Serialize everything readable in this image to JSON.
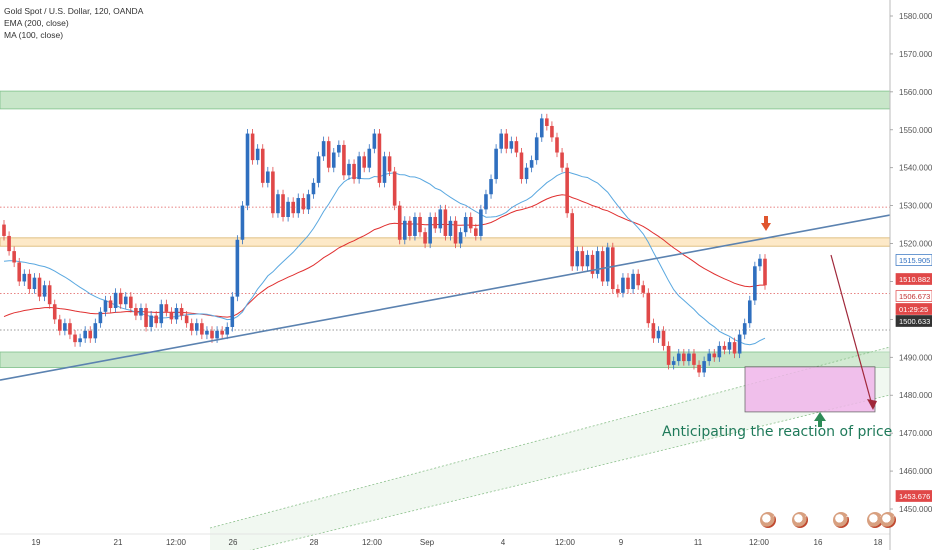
{
  "header": {
    "title": "Gold Spot / U.S. Dollar, 120, OANDA",
    "ema": "EMA (200, close)",
    "ma": "MA (100, close)"
  },
  "annotation": "Anticipating the reaction of price actio",
  "events": [
    {
      "label": "7"
    },
    {
      "label": "7"
    },
    {
      "label": "1"
    },
    {
      "label": "1"
    },
    {
      "label": "7"
    }
  ],
  "colors": {
    "up": "#2f6fbf",
    "down": "#e04848",
    "ema": "#e03030",
    "ma": "#5aa8e0",
    "zone_green": "#c8e6c9",
    "zone_orange": "#fde9c8",
    "pink_box": "#f0b6ea",
    "trend": "#5b82b0"
  },
  "chart_data": {
    "type": "candlestick",
    "symbol": "Gold Spot / U.S. Dollar",
    "interval": "120",
    "source": "OANDA",
    "x_ticks": [
      "19",
      "21",
      "12:00",
      "26",
      "28",
      "12:00",
      "Sep",
      "4",
      "12:00",
      "9",
      "11",
      "12:00",
      "16",
      "18"
    ],
    "y_ticks": [
      1450,
      1460,
      1470,
      1480,
      1490,
      1500,
      1510,
      1520,
      1530,
      1540,
      1550,
      1560,
      1570,
      1580
    ],
    "ylim": [
      1445,
      1588
    ],
    "price_labels": [
      "1515.905",
      "1510.882",
      "1506.673",
      "01:29:25",
      "1500.633",
      "1453.676"
    ],
    "closes": [
      1522,
      1518,
      1515,
      1510,
      1512,
      1508,
      1511,
      1506,
      1509,
      1504,
      1500,
      1497,
      1499,
      1496,
      1494,
      1495,
      1497,
      1495,
      1499,
      1502,
      1505,
      1503,
      1507,
      1504,
      1506,
      1503,
      1501,
      1503,
      1498,
      1501,
      1499,
      1504,
      1502,
      1500,
      1503,
      1501,
      1499,
      1497,
      1499,
      1496,
      1497,
      1495,
      1497,
      1496,
      1498,
      1506,
      1521,
      1530,
      1549,
      1542,
      1545,
      1536,
      1539,
      1528,
      1533,
      1527,
      1531,
      1528,
      1532,
      1529,
      1533,
      1536,
      1543,
      1547,
      1540,
      1544,
      1546,
      1538,
      1541,
      1537,
      1543,
      1540,
      1545,
      1549,
      1536,
      1543,
      1539,
      1530,
      1521,
      1526,
      1522,
      1527,
      1523,
      1520,
      1527,
      1524,
      1529,
      1522,
      1526,
      1520,
      1523,
      1527,
      1524,
      1522,
      1529,
      1533,
      1537,
      1545,
      1549,
      1545,
      1547,
      1544,
      1537,
      1540,
      1542,
      1548,
      1553,
      1551,
      1548,
      1544,
      1540,
      1528,
      1514,
      1518,
      1514,
      1517,
      1512,
      1518,
      1510,
      1519,
      1508,
      1507,
      1511,
      1508,
      1512,
      1509,
      1507,
      1499,
      1495,
      1497,
      1493,
      1488,
      1489,
      1491,
      1489,
      1491,
      1488,
      1486,
      1489,
      1491,
      1490,
      1493,
      1492,
      1494,
      1491,
      1496,
      1499,
      1505,
      1514,
      1516,
      1509
    ]
  }
}
